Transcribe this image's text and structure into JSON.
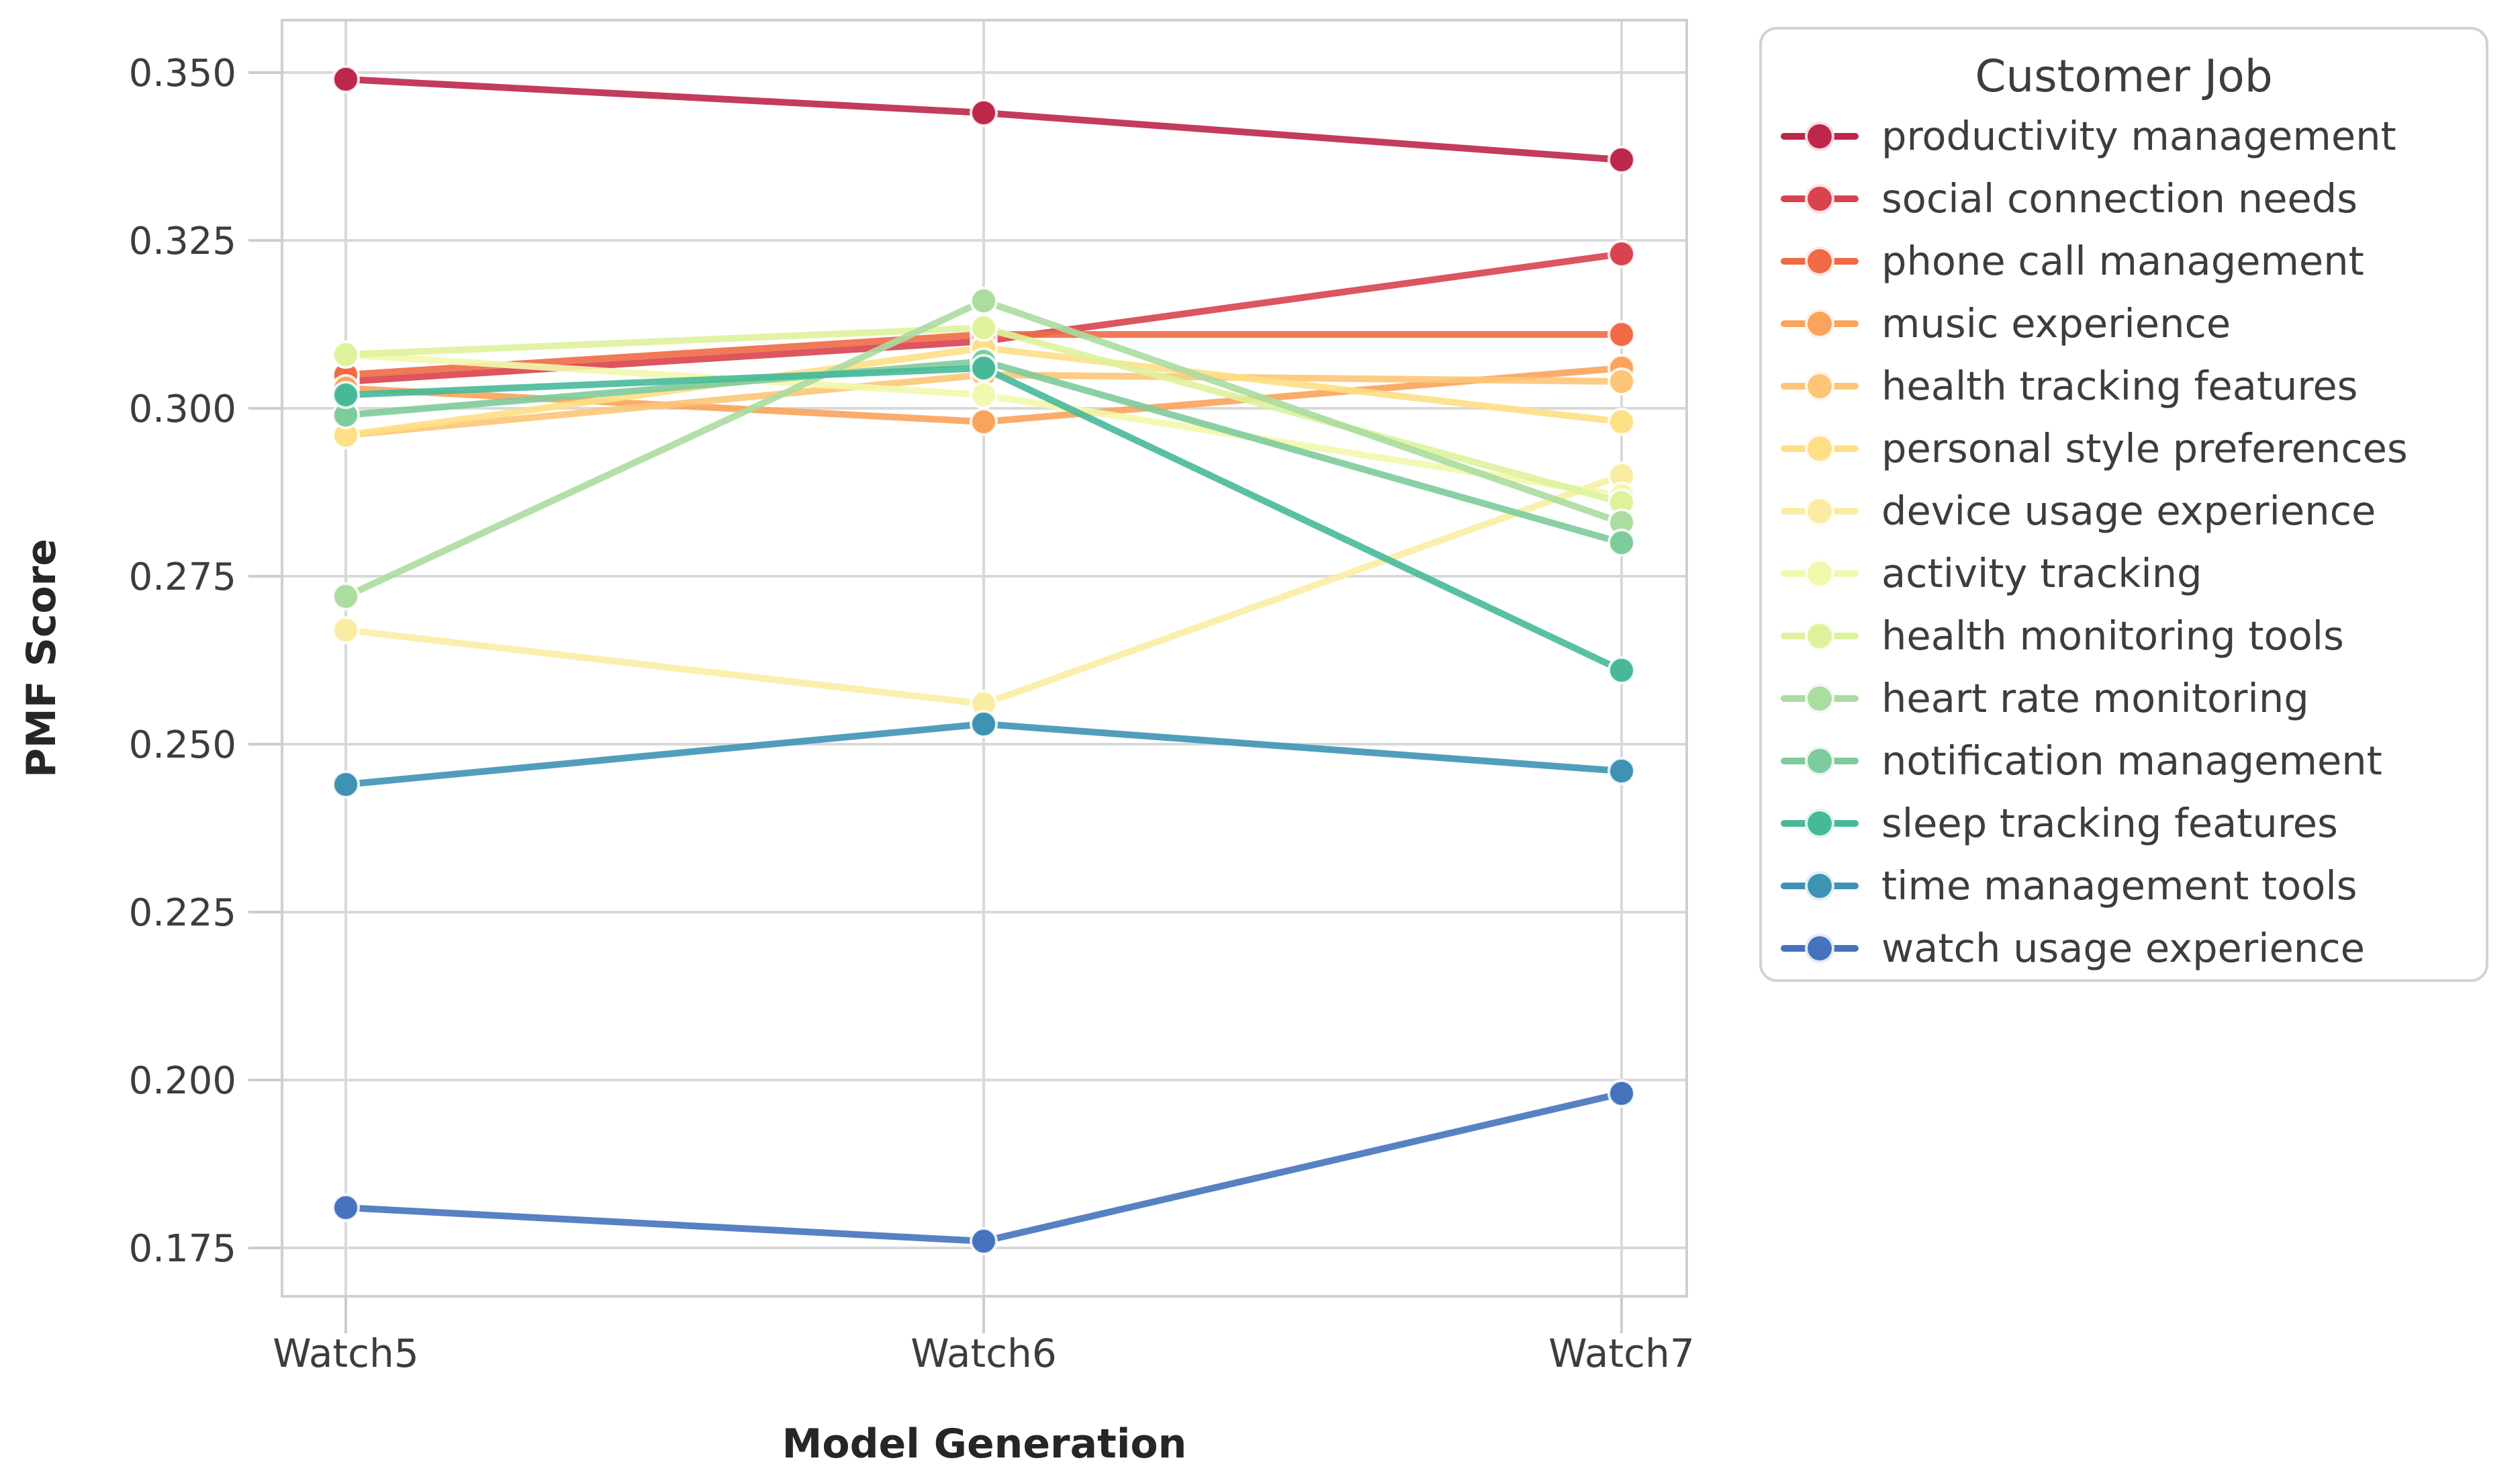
{
  "chart_data": {
    "type": "line",
    "title": "",
    "xlabel": "Model Generation",
    "ylabel": "PMF Score",
    "legend_title": "Customer Job",
    "legend_position": "right",
    "grid": true,
    "categories": [
      "Watch5",
      "Watch6",
      "Watch7"
    ],
    "yticks": [
      "0.350",
      "0.325",
      "0.300",
      "0.275",
      "0.250",
      "0.225",
      "0.200",
      "0.175"
    ],
    "ylim": [
      0.1675,
      0.358
    ],
    "series": [
      {
        "name": "productivity management",
        "color": "#bd2749",
        "values": [
          0.349,
          0.344,
          0.337
        ]
      },
      {
        "name": "social connection needs",
        "color": "#d8434e",
        "values": [
          0.304,
          0.31,
          0.323
        ]
      },
      {
        "name": "phone call management",
        "color": "#ef6a45",
        "values": [
          0.305,
          0.311,
          0.311
        ]
      },
      {
        "name": "music experience",
        "color": "#f9a35b",
        "values": [
          0.303,
          0.298,
          0.306
        ]
      },
      {
        "name": "health tracking features",
        "color": "#fcc577",
        "values": [
          0.296,
          0.305,
          0.304
        ]
      },
      {
        "name": "personal style preferences",
        "color": "#fedf85",
        "values": [
          0.296,
          0.309,
          0.298
        ]
      },
      {
        "name": "device usage experience",
        "color": "#faeda3",
        "values": [
          0.267,
          0.256,
          0.29
        ]
      },
      {
        "name": "activity tracking",
        "color": "#f2f8ad",
        "values": [
          0.308,
          0.302,
          0.287
        ]
      },
      {
        "name": "health monitoring tools",
        "color": "#def29c",
        "values": [
          0.308,
          0.312,
          0.286
        ]
      },
      {
        "name": "heart rate monitoring",
        "color": "#abdca0",
        "values": [
          0.272,
          0.316,
          0.283
        ]
      },
      {
        "name": "notification management",
        "color": "#7ecb9b",
        "values": [
          0.299,
          0.307,
          0.28
        ]
      },
      {
        "name": "sleep tracking features",
        "color": "#47b999",
        "values": [
          0.302,
          0.306,
          0.261
        ]
      },
      {
        "name": "time management tools",
        "color": "#3e93b5",
        "values": [
          0.244,
          0.253,
          0.246
        ]
      },
      {
        "name": "watch usage experience",
        "color": "#4573bd",
        "values": [
          0.181,
          0.176,
          0.198
        ]
      }
    ]
  }
}
